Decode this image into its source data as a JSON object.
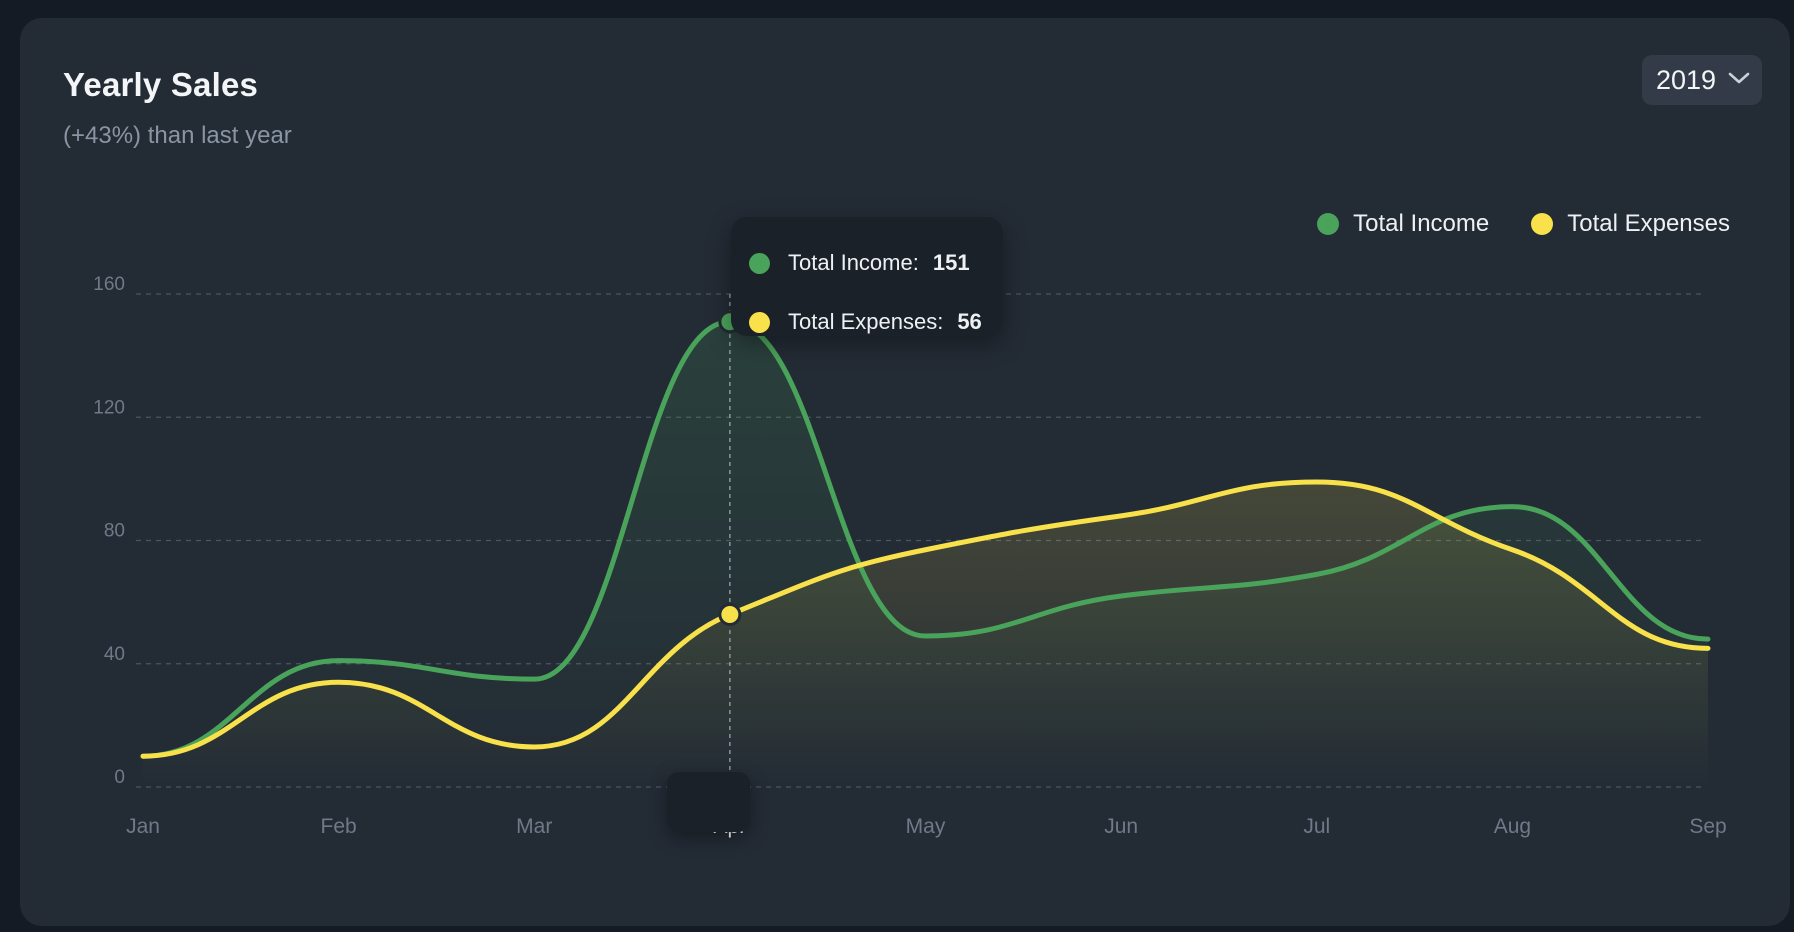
{
  "card": {
    "title": "Yearly Sales",
    "subtitle": "(+43%) than last year"
  },
  "year_select": {
    "value": "2019",
    "icon": "chevron-down-icon"
  },
  "colors": {
    "income": "#4aa35a",
    "expenses": "#f8e14a",
    "grid": "#4a5563",
    "axis_text": "#6f7a88"
  },
  "tooltip": {
    "category": "Apr",
    "rows": [
      {
        "label": "Total Income:",
        "value": "151"
      },
      {
        "label": "Total Expenses:",
        "value": "56"
      }
    ]
  },
  "chart_data": {
    "type": "area",
    "categories": [
      "Jan",
      "Feb",
      "Mar",
      "Apr",
      "May",
      "Jun",
      "Jul",
      "Aug",
      "Sep"
    ],
    "series": [
      {
        "name": "Total Income",
        "values": [
          10,
          41,
          35,
          151,
          49,
          62,
          69,
          91,
          48
        ]
      },
      {
        "name": "Total Expenses",
        "values": [
          10,
          34,
          13,
          56,
          77,
          88,
          99,
          77,
          45
        ]
      }
    ],
    "yticks": [
      0,
      40,
      80,
      120,
      160
    ],
    "ylim": [
      0,
      160
    ],
    "grid": true,
    "legend_position": "top-right",
    "highlighted_category": "Apr"
  }
}
